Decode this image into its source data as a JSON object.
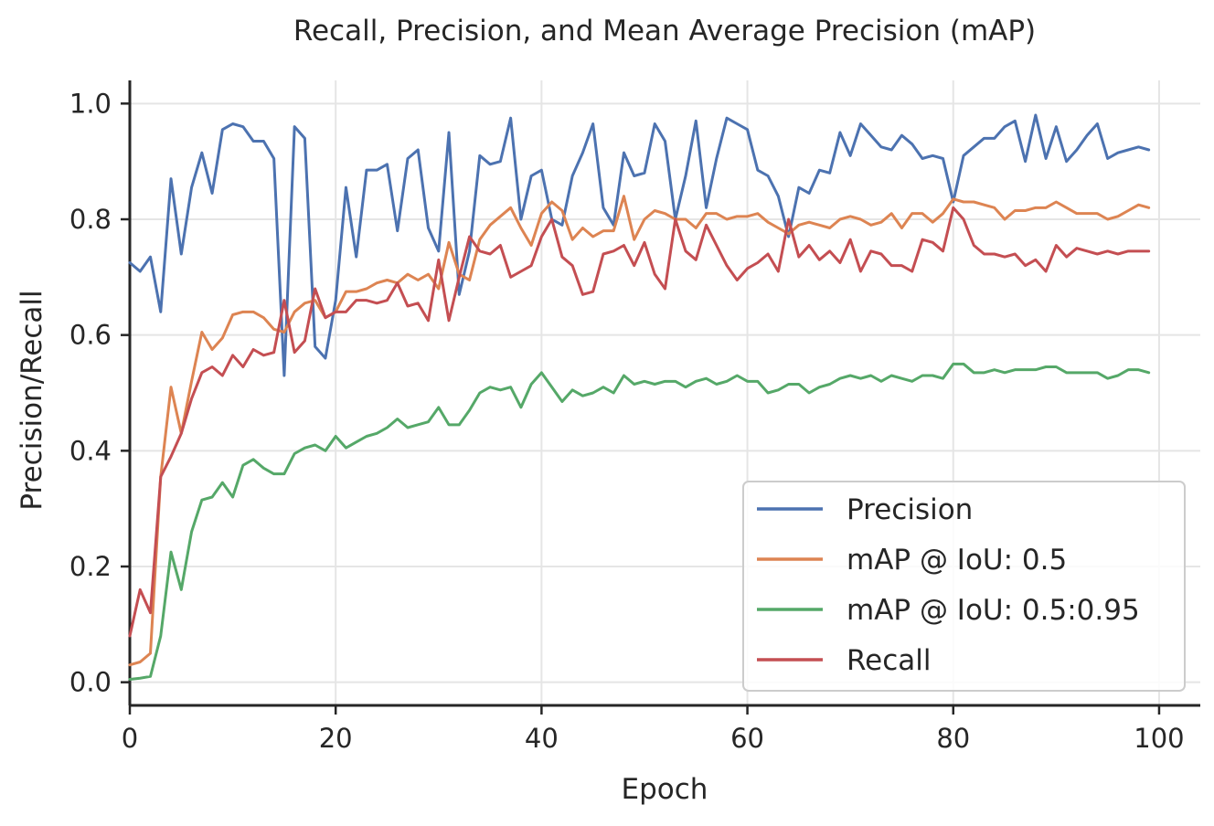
{
  "chart_data": {
    "type": "line",
    "title": "Recall, Precision, and Mean Average Precision (mAP)",
    "xlabel": "Epoch",
    "ylabel": "Precision/Recall",
    "xlim": [
      0,
      104
    ],
    "ylim": [
      -0.04,
      1.04
    ],
    "xticks": [
      0,
      20,
      40,
      60,
      80,
      100
    ],
    "yticks": [
      0.0,
      0.2,
      0.4,
      0.6,
      0.8,
      1.0
    ],
    "xtick_labels": [
      "0",
      "20",
      "40",
      "60",
      "80",
      "100"
    ],
    "ytick_labels": [
      "0.0",
      "0.2",
      "0.4",
      "0.6",
      "0.8",
      "1.0"
    ],
    "grid": true,
    "legend_position": "bottom-right",
    "x": [
      0,
      1,
      2,
      3,
      4,
      5,
      6,
      7,
      8,
      9,
      10,
      11,
      12,
      13,
      14,
      15,
      16,
      17,
      18,
      19,
      20,
      21,
      22,
      23,
      24,
      25,
      26,
      27,
      28,
      29,
      30,
      31,
      32,
      33,
      34,
      35,
      36,
      37,
      38,
      39,
      40,
      41,
      42,
      43,
      44,
      45,
      46,
      47,
      48,
      49,
      50,
      51,
      52,
      53,
      54,
      55,
      56,
      57,
      58,
      59,
      60,
      61,
      62,
      63,
      64,
      65,
      66,
      67,
      68,
      69,
      70,
      71,
      72,
      73,
      74,
      75,
      76,
      77,
      78,
      79,
      80,
      81,
      82,
      83,
      84,
      85,
      86,
      87,
      88,
      89,
      90,
      91,
      92,
      93,
      94,
      95,
      96,
      97,
      98,
      99
    ],
    "series": [
      {
        "name": "Precision",
        "color": "#4c72b0",
        "values": [
          0.725,
          0.71,
          0.735,
          0.64,
          0.87,
          0.74,
          0.855,
          0.915,
          0.845,
          0.955,
          0.965,
          0.96,
          0.935,
          0.935,
          0.905,
          0.53,
          0.96,
          0.94,
          0.58,
          0.56,
          0.66,
          0.855,
          0.735,
          0.885,
          0.885,
          0.895,
          0.78,
          0.905,
          0.92,
          0.785,
          0.745,
          0.95,
          0.67,
          0.745,
          0.91,
          0.895,
          0.9,
          0.975,
          0.8,
          0.875,
          0.885,
          0.8,
          0.79,
          0.875,
          0.915,
          0.965,
          0.82,
          0.79,
          0.915,
          0.875,
          0.88,
          0.965,
          0.935,
          0.8,
          0.875,
          0.97,
          0.82,
          0.905,
          0.975,
          0.965,
          0.955,
          0.885,
          0.875,
          0.84,
          0.77,
          0.855,
          0.845,
          0.885,
          0.88,
          0.95,
          0.91,
          0.965,
          0.945,
          0.925,
          0.92,
          0.945,
          0.93,
          0.905,
          0.91,
          0.905,
          0.83,
          0.91,
          0.925,
          0.94,
          0.94,
          0.96,
          0.97,
          0.9,
          0.98,
          0.905,
          0.96,
          0.9,
          0.92,
          0.945,
          0.965,
          0.905,
          0.915,
          0.92,
          0.925,
          0.92
        ]
      },
      {
        "name": "mAP @ IoU: 0.5",
        "color": "#dd8452",
        "values": [
          0.03,
          0.035,
          0.05,
          0.355,
          0.51,
          0.43,
          0.52,
          0.605,
          0.575,
          0.595,
          0.635,
          0.64,
          0.64,
          0.63,
          0.61,
          0.605,
          0.64,
          0.655,
          0.66,
          0.63,
          0.64,
          0.675,
          0.675,
          0.68,
          0.69,
          0.695,
          0.69,
          0.705,
          0.695,
          0.705,
          0.68,
          0.76,
          0.705,
          0.695,
          0.765,
          0.79,
          0.805,
          0.82,
          0.785,
          0.755,
          0.81,
          0.83,
          0.815,
          0.765,
          0.785,
          0.77,
          0.78,
          0.78,
          0.84,
          0.765,
          0.8,
          0.815,
          0.81,
          0.8,
          0.8,
          0.785,
          0.81,
          0.81,
          0.8,
          0.805,
          0.805,
          0.81,
          0.795,
          0.785,
          0.775,
          0.79,
          0.795,
          0.79,
          0.785,
          0.8,
          0.805,
          0.8,
          0.79,
          0.795,
          0.81,
          0.785,
          0.81,
          0.81,
          0.795,
          0.81,
          0.835,
          0.83,
          0.83,
          0.825,
          0.82,
          0.8,
          0.815,
          0.815,
          0.82,
          0.82,
          0.83,
          0.82,
          0.81,
          0.81,
          0.81,
          0.8,
          0.805,
          0.815,
          0.825,
          0.82
        ]
      },
      {
        "name": "mAP @ IoU: 0.5:0.95",
        "color": "#55a868",
        "values": [
          0.005,
          0.007,
          0.01,
          0.08,
          0.225,
          0.16,
          0.26,
          0.315,
          0.32,
          0.345,
          0.32,
          0.375,
          0.385,
          0.37,
          0.36,
          0.36,
          0.395,
          0.405,
          0.41,
          0.4,
          0.425,
          0.405,
          0.415,
          0.425,
          0.43,
          0.44,
          0.455,
          0.44,
          0.445,
          0.45,
          0.475,
          0.445,
          0.445,
          0.47,
          0.5,
          0.51,
          0.505,
          0.51,
          0.475,
          0.515,
          0.535,
          0.51,
          0.485,
          0.505,
          0.495,
          0.5,
          0.51,
          0.5,
          0.53,
          0.515,
          0.52,
          0.515,
          0.52,
          0.52,
          0.51,
          0.52,
          0.525,
          0.515,
          0.52,
          0.53,
          0.52,
          0.52,
          0.5,
          0.505,
          0.515,
          0.515,
          0.5,
          0.51,
          0.515,
          0.525,
          0.53,
          0.525,
          0.53,
          0.52,
          0.53,
          0.525,
          0.52,
          0.53,
          0.53,
          0.525,
          0.55,
          0.55,
          0.535,
          0.535,
          0.54,
          0.535,
          0.54,
          0.54,
          0.54,
          0.545,
          0.545,
          0.535,
          0.535,
          0.535,
          0.535,
          0.525,
          0.53,
          0.54,
          0.54,
          0.535
        ]
      },
      {
        "name": "Recall",
        "color": "#c44e52",
        "values": [
          0.08,
          0.16,
          0.12,
          0.355,
          0.39,
          0.43,
          0.49,
          0.535,
          0.545,
          0.53,
          0.565,
          0.545,
          0.575,
          0.565,
          0.57,
          0.66,
          0.57,
          0.59,
          0.68,
          0.63,
          0.64,
          0.64,
          0.66,
          0.66,
          0.655,
          0.66,
          0.69,
          0.65,
          0.655,
          0.625,
          0.73,
          0.625,
          0.7,
          0.77,
          0.745,
          0.74,
          0.755,
          0.7,
          0.71,
          0.72,
          0.77,
          0.8,
          0.735,
          0.72,
          0.67,
          0.675,
          0.74,
          0.745,
          0.755,
          0.72,
          0.76,
          0.705,
          0.68,
          0.8,
          0.745,
          0.73,
          0.79,
          0.755,
          0.72,
          0.695,
          0.715,
          0.725,
          0.74,
          0.71,
          0.8,
          0.735,
          0.755,
          0.73,
          0.745,
          0.725,
          0.765,
          0.71,
          0.745,
          0.74,
          0.72,
          0.72,
          0.71,
          0.765,
          0.76,
          0.745,
          0.82,
          0.8,
          0.755,
          0.74,
          0.74,
          0.735,
          0.74,
          0.72,
          0.73,
          0.71,
          0.755,
          0.735,
          0.75,
          0.745,
          0.74,
          0.745,
          0.74,
          0.745,
          0.745,
          0.745
        ]
      }
    ]
  }
}
